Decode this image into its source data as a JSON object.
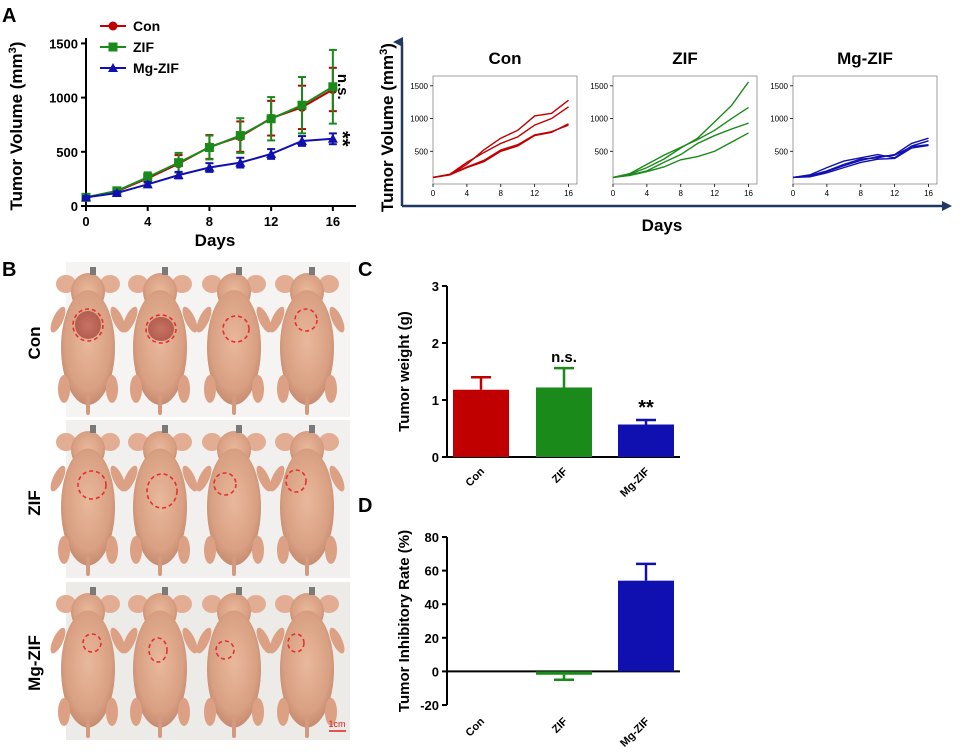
{
  "panel_labels": {
    "a": "A",
    "b": "B",
    "c": "C",
    "d": "D"
  },
  "colors": {
    "con": "#c00000",
    "zif": "#1a8a1a",
    "mgzif": "#1010b0",
    "axis": "#000000",
    "nav": "#1f3864",
    "circle": "#e53030"
  },
  "chart_data": [
    {
      "id": "A1",
      "type": "line",
      "title": "",
      "xlabel": "Days",
      "ylabel": "Tumor Volume (mm",
      "ylabel_sup": "3",
      "ylabel_close": ")",
      "xlim": [
        0,
        17.5
      ],
      "ylim": [
        0,
        1550
      ],
      "x_ticks": [
        0,
        4,
        8,
        12,
        16
      ],
      "y_ticks": [
        0,
        500,
        1000,
        1500
      ],
      "x": [
        0,
        2,
        4,
        6,
        8,
        10,
        12,
        14,
        16
      ],
      "series": [
        {
          "name": "Con",
          "key": "con",
          "marker": "circle",
          "values": [
            80,
            135,
            255,
            390,
            545,
            640,
            810,
            910,
            1075
          ],
          "errors": [
            10,
            20,
            40,
            80,
            110,
            140,
            160,
            200,
            200
          ]
        },
        {
          "name": "ZIF",
          "key": "zif",
          "marker": "square",
          "values": [
            80,
            140,
            265,
            400,
            540,
            650,
            805,
            930,
            1100
          ],
          "errors": [
            10,
            20,
            45,
            90,
            110,
            160,
            200,
            260,
            340
          ]
        },
        {
          "name": "Mg-ZIF",
          "key": "mgzif",
          "marker": "triangle",
          "values": [
            80,
            120,
            200,
            285,
            355,
            400,
            480,
            600,
            620
          ],
          "errors": [
            10,
            15,
            20,
            30,
            40,
            45,
            45,
            45,
            50
          ]
        }
      ],
      "annotations": [
        {
          "text": "n.s.",
          "series": "zif"
        },
        {
          "text": "**",
          "series": "mgzif"
        }
      ]
    },
    {
      "id": "A2",
      "type": "line",
      "xlabel": "Days",
      "ylabel": "Tumor Volume (mm",
      "ylabel_sup": "3",
      "ylabel_close": ")",
      "xlim": [
        0,
        17
      ],
      "ylim": [
        0,
        1650
      ],
      "x_ticks": [
        0,
        4,
        8,
        12,
        16
      ],
      "y_ticks": [
        500,
        1000,
        1500
      ],
      "x": [
        0,
        2,
        4,
        6,
        8,
        10,
        12,
        14,
        16
      ],
      "subplots": [
        {
          "title": "Con",
          "key": "con",
          "lines": [
            [
              100,
              140,
              300,
              520,
              700,
              820,
              1040,
              1080,
              1280
            ],
            [
              100,
              150,
              330,
              480,
              620,
              720,
              900,
              1000,
              1180
            ],
            [
              100,
              145,
              260,
              360,
              520,
              600,
              750,
              800,
              900
            ],
            [
              100,
              140,
              250,
              340,
              500,
              580,
              740,
              790,
              920
            ]
          ]
        },
        {
          "title": "ZIF",
          "key": "zif",
          "lines": [
            [
              100,
              150,
              250,
              380,
              550,
              700,
              950,
              1200,
              1560
            ],
            [
              100,
              160,
              300,
              440,
              560,
              680,
              820,
              1000,
              1170
            ],
            [
              100,
              140,
              200,
              330,
              450,
              620,
              740,
              840,
              930
            ],
            [
              100,
              130,
              190,
              260,
              370,
              420,
              500,
              640,
              780
            ]
          ]
        },
        {
          "title": "Mg-ZIF",
          "key": "mgzif",
          "lines": [
            [
              100,
              130,
              200,
              300,
              380,
              400,
              450,
              620,
              700
            ],
            [
              100,
              140,
              250,
              350,
              400,
              450,
              400,
              580,
              660
            ],
            [
              100,
              120,
              190,
              280,
              360,
              420,
              440,
              570,
              600
            ],
            [
              100,
              110,
              170,
              250,
              330,
              380,
              390,
              550,
              590
            ]
          ]
        }
      ]
    },
    {
      "id": "C",
      "type": "bar",
      "ylabel": "Tumor weight (g)",
      "categories": [
        "Con",
        "ZIF",
        "Mg-ZIF"
      ],
      "keys": [
        "con",
        "zif",
        "mgzif"
      ],
      "values": [
        1.18,
        1.22,
        0.57
      ],
      "errors": [
        0.22,
        0.34,
        0.08
      ],
      "ylim": [
        0,
        3
      ],
      "y_ticks": [
        0,
        1,
        2,
        3
      ],
      "annotations": [
        "",
        "n.s.",
        "**"
      ]
    },
    {
      "id": "D",
      "type": "bar",
      "ylabel": "Tumor Inhibitory Rate (%)",
      "categories": [
        "Con",
        "ZIF",
        "Mg-ZIF"
      ],
      "keys": [
        "con",
        "zif",
        "mgzif"
      ],
      "values": [
        0,
        -2,
        54
      ],
      "errors": [
        0,
        3,
        10
      ],
      "ylim": [
        -20,
        80
      ],
      "y_ticks": [
        -20,
        0,
        20,
        40,
        60,
        80
      ]
    }
  ],
  "photo": {
    "row_labels": [
      "Con",
      "ZIF",
      "Mg-ZIF"
    ],
    "scale_bar": "1cm"
  }
}
